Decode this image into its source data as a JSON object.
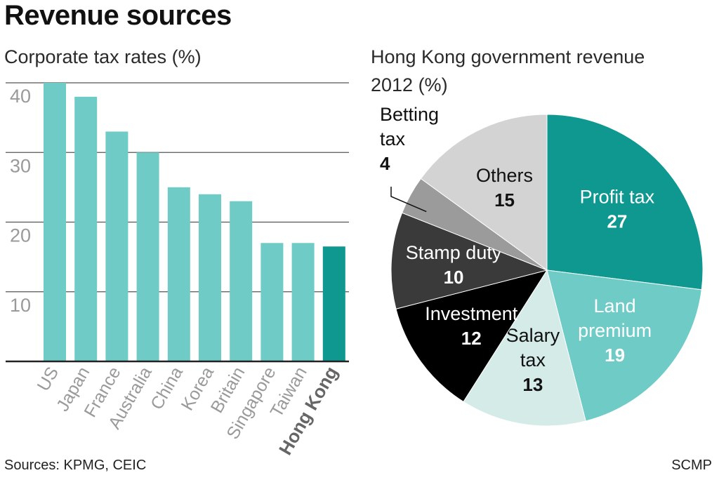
{
  "header": {
    "title": "Revenue sources"
  },
  "footer": {
    "sources": "Sources: KPMG, CEIC",
    "credit": "SCMP"
  },
  "chart_data": [
    {
      "type": "bar",
      "title": "Corporate tax rates (%)",
      "categories": [
        "US",
        "Japan",
        "France",
        "Australia",
        "China",
        "Korea",
        "Britain",
        "Singapore",
        "Taiwan",
        "Hong Kong"
      ],
      "values": [
        40,
        38,
        33,
        30,
        25,
        24,
        23,
        17,
        17,
        16.5
      ],
      "highlight": "Hong Kong",
      "yticks": [
        10,
        20,
        30,
        40
      ],
      "ylim": [
        0,
        40
      ],
      "grid": true,
      "colors": {
        "bar": "#6fcbc6",
        "highlight": "#0e9890",
        "grid": "#555555",
        "tick_label": "#9a9a9a",
        "category_label": "#9a9a9a",
        "highlight_label": "#666666"
      }
    },
    {
      "type": "pie",
      "title_lines": [
        "Hong Kong government revenue",
        "2012 (%)"
      ],
      "slices": [
        {
          "label_lines": [
            "Profit tax"
          ],
          "value": 27,
          "color": "#0e9890",
          "text_color": "#ffffff"
        },
        {
          "label_lines": [
            "Land",
            "premium"
          ],
          "value": 19,
          "color": "#6fcbc6",
          "text_color": "#ffffff"
        },
        {
          "label_lines": [
            "Salary",
            "tax"
          ],
          "value": 13,
          "color": "#d4ebe8",
          "text_color": "#111111"
        },
        {
          "label_lines": [
            "Investment"
          ],
          "value": 12,
          "color": "#000000",
          "text_color": "#ffffff"
        },
        {
          "label_lines": [
            "Stamp duty"
          ],
          "value": 10,
          "color": "#3a3a3a",
          "text_color": "#ffffff"
        },
        {
          "label_lines": [
            "Betting",
            "tax"
          ],
          "value": 4,
          "color": "#9b9b9b",
          "text_color": "#111111",
          "outside": true
        },
        {
          "label_lines": [
            "Others"
          ],
          "value": 15,
          "color": "#d3d3d3",
          "text_color": "#111111"
        }
      ]
    }
  ]
}
